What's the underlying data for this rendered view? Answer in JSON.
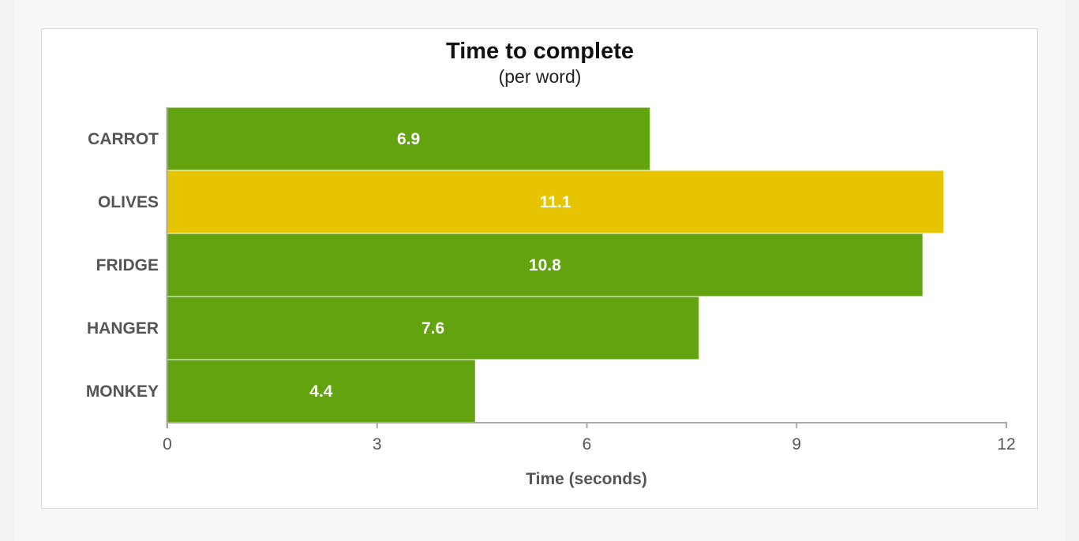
{
  "chart_data": {
    "type": "bar",
    "orientation": "horizontal",
    "title": "Time to complete",
    "subtitle": "(per word)",
    "xlabel": "Time (seconds)",
    "ylabel": "",
    "categories": [
      "CARROT",
      "OLIVES",
      "FRIDGE",
      "HANGER",
      "MONKEY"
    ],
    "values": [
      6.9,
      11.1,
      10.8,
      7.6,
      4.4
    ],
    "data_labels": [
      "6.9",
      "11.1",
      "10.8",
      "7.6",
      "4.4"
    ],
    "xlim": [
      0,
      12
    ],
    "x_ticks": [
      0,
      3,
      6,
      9,
      12
    ],
    "x_tick_labels": [
      "0",
      "3",
      "6",
      "9",
      "12"
    ],
    "grid": false,
    "legend": "none",
    "colors": {
      "default_bar": "#62a30f",
      "highlight_bar": "#e6c500",
      "highlight_category": "OLIVES",
      "axis": "#aaaaaa"
    }
  }
}
